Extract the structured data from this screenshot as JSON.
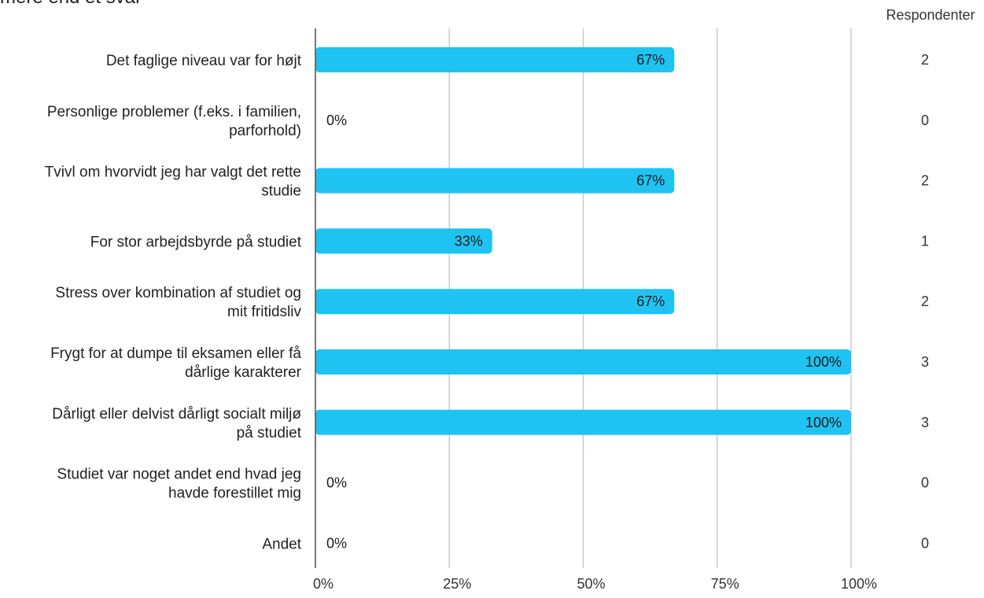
{
  "title": "mere end et svar",
  "chart_data": {
    "type": "bar",
    "orientation": "horizontal",
    "categories": [
      [
        "Det faglige niveau var for højt"
      ],
      [
        "Personlige problemer (f.eks. i familien,",
        "parforhold)"
      ],
      [
        "Tvivl om hvorvidt jeg har valgt det rette",
        "studie"
      ],
      [
        "For stor arbejdsbyrde på studiet"
      ],
      [
        "Stress over kombination af studiet og",
        "mit fritidsliv"
      ],
      [
        "Frygt for at dumpe til eksamen eller få",
        "dårlige karakterer"
      ],
      [
        "Dårligt eller delvist dårligt socialt miljø",
        "på studiet"
      ],
      [
        "Studiet var noget andet end hvad jeg",
        "havde forestillet mig"
      ],
      [
        "Andet"
      ]
    ],
    "values": [
      67,
      0,
      67,
      33,
      67,
      100,
      100,
      0,
      0
    ],
    "value_labels": [
      "67%",
      "0%",
      "67%",
      "33%",
      "67%",
      "100%",
      "100%",
      "0%",
      "0%"
    ],
    "respondents_header": "Respondenter",
    "respondents": [
      "2",
      "0",
      "2",
      "1",
      "2",
      "3",
      "3",
      "0",
      "0"
    ],
    "xlim": [
      0,
      100
    ],
    "x_ticks": [
      0,
      25,
      50,
      75,
      100
    ],
    "x_tick_labels": [
      "0%",
      "25%",
      "50%",
      "75%",
      "100%"
    ],
    "grid": true,
    "bar_color": "#1EC3F2",
    "grid_color": "#c8c8c8",
    "axis_color": "#555555"
  }
}
